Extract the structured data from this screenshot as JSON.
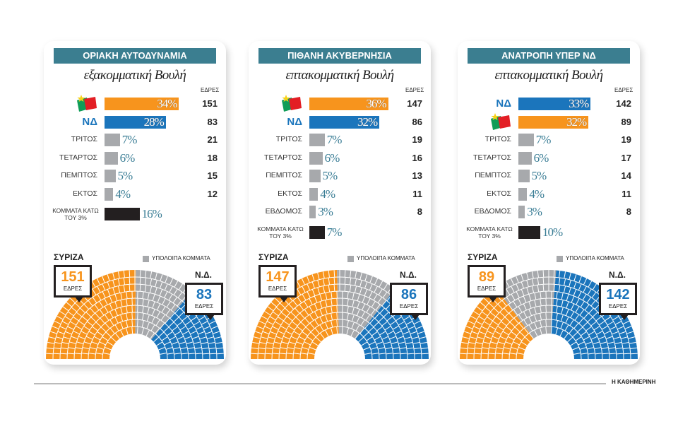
{
  "chart_data": [
    {
      "type": "bar",
      "title": "ΟΡΙΑΚΗ ΑΥΤΟΔΥΝΑΜΙΑ",
      "subtitle": "εξακομματική Βουλή",
      "seats_label": "ΕΔΡΕΣ",
      "categories": [
        null,
        "ΝΔ",
        "ΤΡΙΤΟΣ",
        "ΤΕΤΑΡΤΟΣ",
        "ΠΕΜΠΤΟΣ",
        "ΕΚΤΟΣ",
        "ΚΟΜΜΑΤΑ ΚΑΤΩ ΤΟΥ 3%"
      ],
      "values": [
        34,
        28,
        7,
        6,
        5,
        4,
        16
      ],
      "value_labels": [
        "34%",
        "28%",
        "7%",
        "6%",
        "5%",
        "4%",
        "16%"
      ],
      "seats": [
        151,
        83,
        21,
        18,
        15,
        12,
        null
      ],
      "colors": [
        "#f7941d",
        "#1b75bc",
        "#a7a9ac",
        "#a7a9ac",
        "#a7a9ac",
        "#a7a9ac",
        "#231f20"
      ],
      "parliament": {
        "unit": "ΕΔΡΕΣ",
        "series": [
          {
            "name": "ΣΥΡΙΖΑ",
            "color": "#f7941d",
            "values": 151
          },
          {
            "name": "ΥΠΟΛΟΙΠΑ ΚΟΜΜΑΤΑ",
            "color": "#a7a9ac",
            "values": 66
          },
          {
            "name": "Ν.Δ.",
            "color": "#1b75bc",
            "values": 83
          }
        ]
      }
    },
    {
      "type": "bar",
      "title": "ΠΙΘΑΝΗ ΑΚΥΒΕΡΝΗΣΙΑ",
      "subtitle": "επτακομματική Βουλή",
      "seats_label": "ΕΔΡΕΣ",
      "categories": [
        null,
        "ΝΔ",
        "ΤΡΙΤΟΣ",
        "ΤΕΤΑΡΤΟΣ",
        "ΠΕΜΠΤΟΣ",
        "ΕΚΤΟΣ",
        "ΕΒΔΟΜΟΣ",
        "ΚΟΜΜΑΤΑ ΚΑΤΩ ΤΟΥ 3%"
      ],
      "values": [
        36,
        32,
        7,
        6,
        5,
        4,
        3,
        7
      ],
      "value_labels": [
        "36%",
        "32%",
        "7%",
        "6%",
        "5%",
        "4%",
        "3%",
        "7%"
      ],
      "seats": [
        147,
        86,
        19,
        16,
        13,
        11,
        8,
        null
      ],
      "colors": [
        "#f7941d",
        "#1b75bc",
        "#a7a9ac",
        "#a7a9ac",
        "#a7a9ac",
        "#a7a9ac",
        "#a7a9ac",
        "#231f20"
      ],
      "parliament": {
        "unit": "ΕΔΡΕΣ",
        "series": [
          {
            "name": "ΣΥΡΙΖΑ",
            "color": "#f7941d",
            "values": 147
          },
          {
            "name": "ΥΠΟΛΟΙΠΑ ΚΟΜΜΑΤΑ",
            "color": "#a7a9ac",
            "values": 67
          },
          {
            "name": "Ν.Δ.",
            "color": "#1b75bc",
            "values": 86
          }
        ]
      }
    },
    {
      "type": "bar",
      "title": "ΑΝΑΤΡΟΠΗ ΥΠΕΡ ΝΔ",
      "subtitle": "επτακομματική Βουλή",
      "seats_label": "ΕΔΡΕΣ",
      "categories": [
        "ΝΔ",
        null,
        "ΤΡΙΤΟΣ",
        "ΤΕΤΑΡΤΟΣ",
        "ΠΕΜΠΤΟΣ",
        "ΕΚΤΟΣ",
        "ΕΒΔΟΜΟΣ",
        "ΚΟΜΜΑΤΑ ΚΑΤΩ ΤΟΥ 3%"
      ],
      "values": [
        33,
        32,
        7,
        6,
        5,
        4,
        3,
        10
      ],
      "value_labels": [
        "33%",
        "32%",
        "7%",
        "6%",
        "5%",
        "4%",
        "3%",
        "10%"
      ],
      "seats": [
        142,
        89,
        19,
        17,
        14,
        11,
        8,
        null
      ],
      "colors": [
        "#1b75bc",
        "#f7941d",
        "#a7a9ac",
        "#a7a9ac",
        "#a7a9ac",
        "#a7a9ac",
        "#a7a9ac",
        "#231f20"
      ],
      "parliament": {
        "unit": "ΕΔΡΕΣ",
        "series": [
          {
            "name": "ΣΥΡΙΖΑ",
            "color": "#f7941d",
            "values": 89
          },
          {
            "name": "ΥΠΟΛΟΙΠΑ ΚΟΜΜΑΤΑ",
            "color": "#a7a9ac",
            "values": 69
          },
          {
            "name": "Ν.Δ.",
            "color": "#1b75bc",
            "values": 142
          }
        ]
      }
    }
  ],
  "source": "Η ΚΑΘΗΜΕΡΙΝΗ"
}
